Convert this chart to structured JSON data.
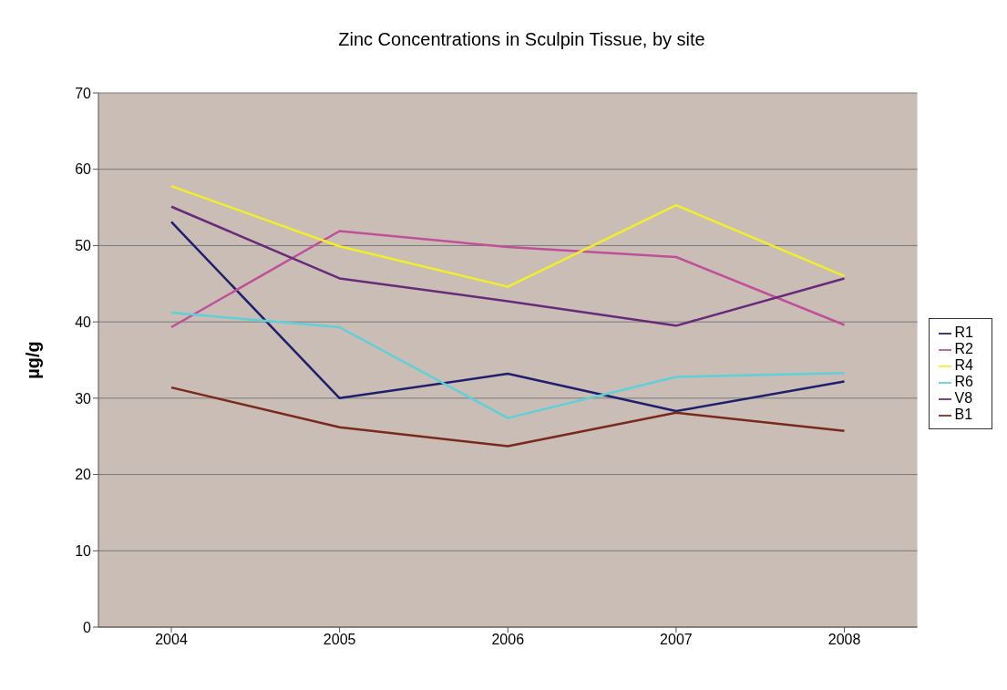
{
  "chart_data": {
    "type": "line",
    "title": "Zinc Concentrations in Sculpin Tissue, by site",
    "ylabel": "µg/g",
    "categories": [
      "2004",
      "2005",
      "2006",
      "2007",
      "2008"
    ],
    "series": [
      {
        "name": "R1",
        "color": "#1f1f6e",
        "values": [
          53.1,
          30.0,
          33.2,
          28.3,
          32.2
        ]
      },
      {
        "name": "R2",
        "color": "#c0509a",
        "values": [
          39.3,
          51.9,
          49.8,
          48.5,
          39.6
        ]
      },
      {
        "name": "R4",
        "color": "#f2ef2a",
        "values": [
          57.8,
          49.9,
          44.6,
          55.3,
          46.0
        ]
      },
      {
        "name": "R6",
        "color": "#5fd0d8",
        "values": [
          41.2,
          39.3,
          27.4,
          32.8,
          33.3
        ]
      },
      {
        "name": "V8",
        "color": "#6a2a7a",
        "values": [
          55.1,
          45.7,
          42.7,
          39.5,
          45.7
        ]
      },
      {
        "name": "B1",
        "color": "#7a2a1c",
        "values": [
          31.4,
          26.2,
          23.7,
          28.1,
          25.7
        ]
      }
    ],
    "ylim": [
      0,
      70
    ],
    "yticks": [
      0,
      10,
      20,
      30,
      40,
      50,
      60,
      70
    ],
    "grid": "y",
    "legend": "right",
    "marker": "none",
    "line_style": "solid"
  }
}
